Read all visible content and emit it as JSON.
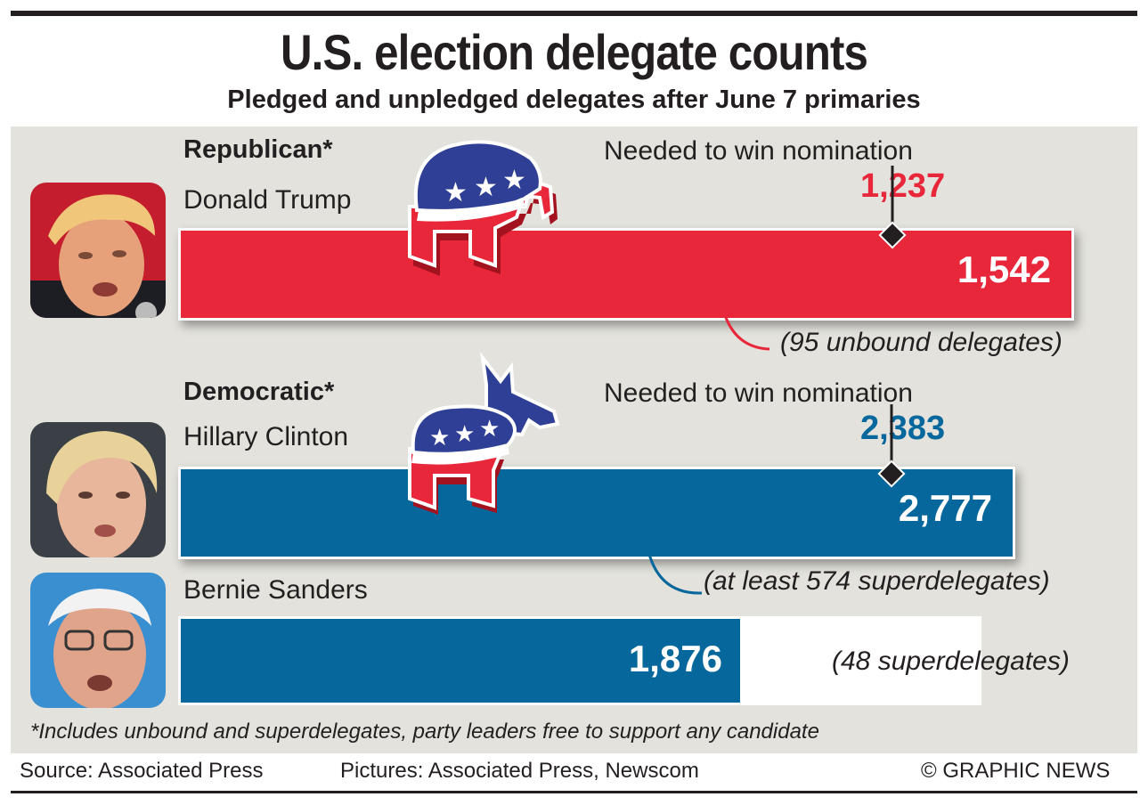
{
  "title": "U.S. election delegate counts",
  "subtitle": "Pledged and unpledged delegates after June 7 primaries",
  "colors": {
    "republican": "#e8273a",
    "democratic": "#06679d",
    "panel": "#e3e2dc",
    "text": "#231f20"
  },
  "republican": {
    "party_label": "Republican*",
    "needed_label": "Needed to win nomination",
    "needed_value": "1,237",
    "candidate": {
      "name": "Donald Trump",
      "value_label": "1,542",
      "note": "(95 unbound delegates)"
    }
  },
  "democratic": {
    "party_label": "Democratic*",
    "needed_label": "Needed to win nomination",
    "needed_value": "2,383",
    "candidates": [
      {
        "name": "Hillary Clinton",
        "value_label": "2,777",
        "note": "(at least 574 superdelegates)"
      },
      {
        "name": "Bernie Sanders",
        "value_label": "1,876",
        "note": "(48 superdelegates)"
      }
    ]
  },
  "chart_data": {
    "type": "bar",
    "title": "U.S. election delegate counts",
    "subtitle": "Pledged and unpledged delegates after June 7 primaries",
    "series": [
      {
        "name": "Republican*",
        "categories": [
          "Donald Trump"
        ],
        "values": [
          1542
        ],
        "threshold": 1237
      },
      {
        "name": "Democratic*",
        "categories": [
          "Hillary Clinton",
          "Bernie Sanders"
        ],
        "values": [
          2777,
          1876
        ],
        "threshold": 2383
      }
    ],
    "annotations": [
      "(95 unbound delegates)",
      "(at least 574 superdelegates)",
      "(48 superdelegates)"
    ]
  },
  "footnote": "*Includes unbound and superdelegates, party leaders free to support any candidate",
  "footer": {
    "source": "Source: Associated Press",
    "pictures": "Pictures: Associated Press, Newscom",
    "copyright": "© GRAPHIC NEWS"
  }
}
